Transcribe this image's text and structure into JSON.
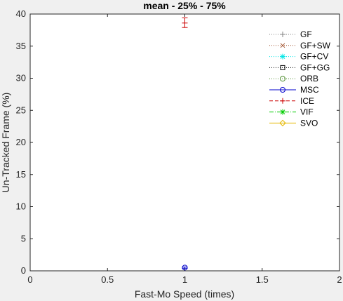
{
  "chart_data": {
    "type": "scatter",
    "title": "mean - 25% - 75%",
    "xlabel": "Fast-Mo Speed (times)",
    "ylabel": "Un-Tracked Frame (%)",
    "xlim": [
      0,
      2
    ],
    "ylim": [
      0,
      40
    ],
    "x_ticks": [
      "0",
      "0.5",
      "1",
      "1.5",
      "2"
    ],
    "y_ticks": [
      "0",
      "5",
      "10",
      "15",
      "20",
      "25",
      "30",
      "35",
      "40"
    ],
    "x_tick_values": [
      0,
      0.5,
      1,
      1.5,
      2
    ],
    "y_tick_values": [
      0,
      5,
      10,
      15,
      20,
      25,
      30,
      35,
      40
    ],
    "grid": false,
    "legend_position": "top-right",
    "series": [
      {
        "name": "GF",
        "color": "#808080",
        "marker": "plus",
        "line": "dotted",
        "points": []
      },
      {
        "name": "GF+SW",
        "color": "#a0522d",
        "marker": "x",
        "line": "dotted",
        "points": []
      },
      {
        "name": "GF+CV",
        "color": "#00e5e5",
        "marker": "asterisk",
        "line": "dotted",
        "points": []
      },
      {
        "name": "GF+GG",
        "color": "#000000",
        "marker": "square",
        "line": "dotted",
        "points": []
      },
      {
        "name": "ORB",
        "color": "#4c8c2b",
        "marker": "circle",
        "line": "dotted",
        "points": []
      },
      {
        "name": "MSC",
        "color": "#0000cc",
        "marker": "circle",
        "line": "solid",
        "points": [
          {
            "x": 1,
            "y": 0.5,
            "low": 0.4,
            "high": 0.6
          }
        ]
      },
      {
        "name": "ICE",
        "color": "#cc0000",
        "marker": "plus",
        "line": "dashed",
        "points": [
          {
            "x": 1,
            "y": 38.6,
            "low": 37.9,
            "high": 39.4
          }
        ]
      },
      {
        "name": "VIF",
        "color": "#00cc00",
        "marker": "asterisk",
        "line": "dashdot",
        "points": []
      },
      {
        "name": "SVO",
        "color": "#e5b800",
        "marker": "diamond",
        "line": "solid",
        "points": []
      }
    ]
  }
}
